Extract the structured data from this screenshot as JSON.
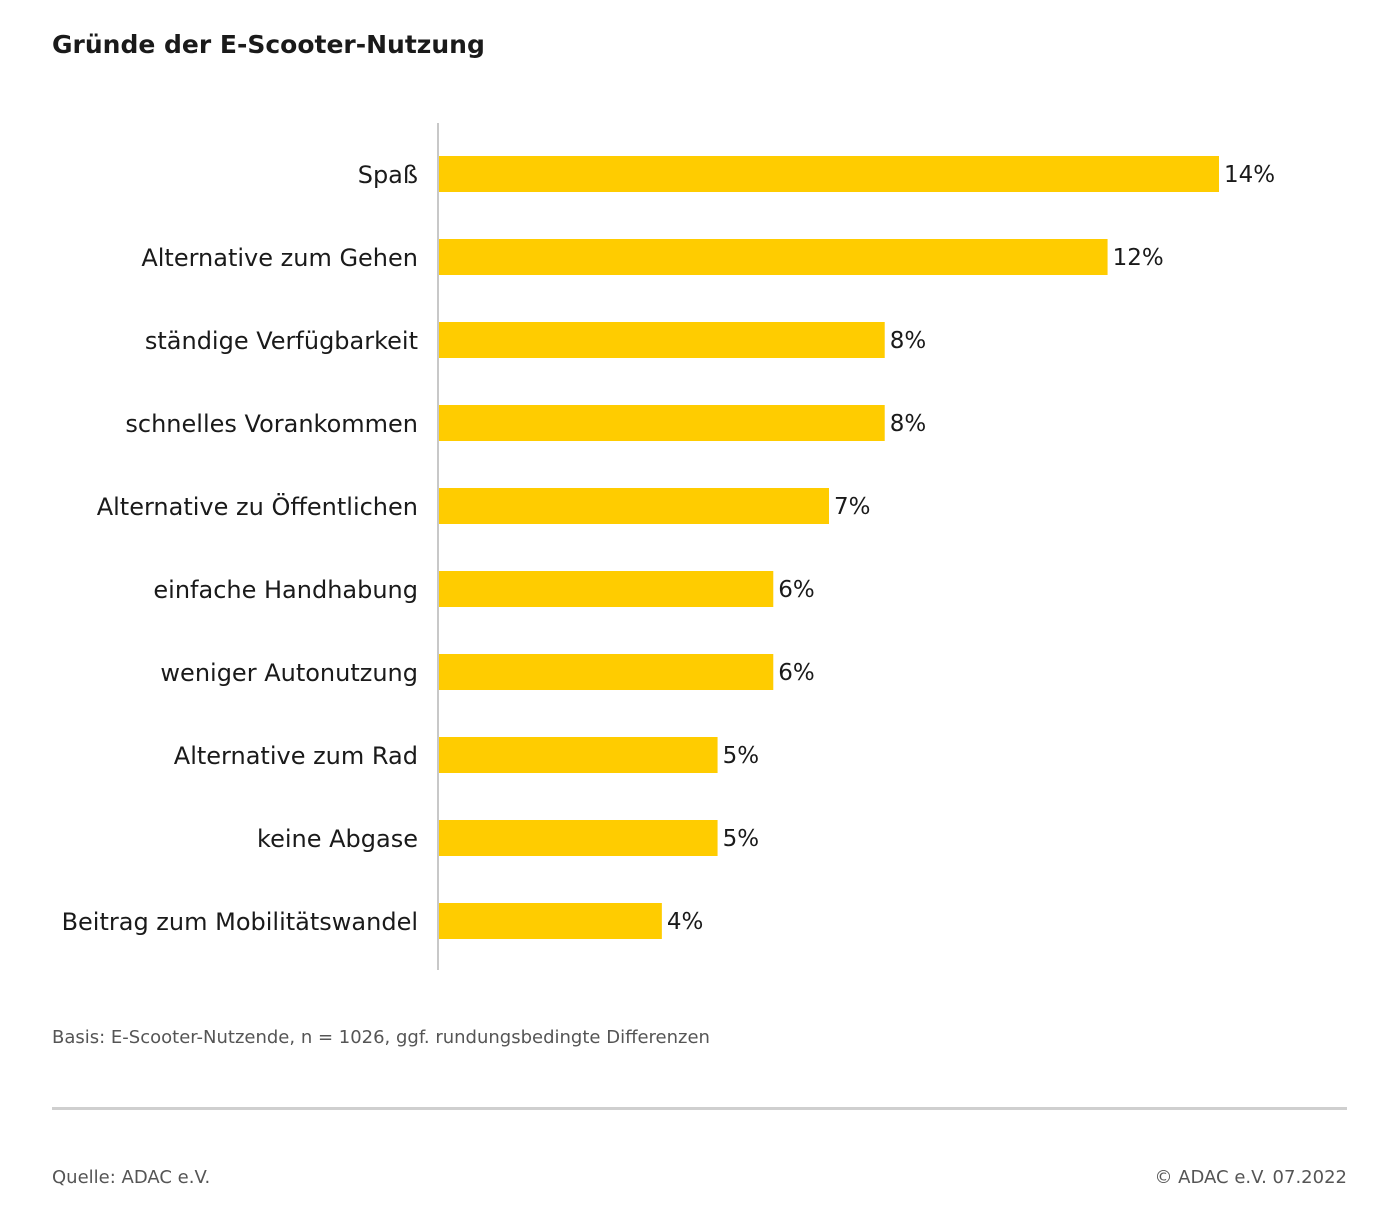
{
  "colors": {
    "bar": "#ffcc00",
    "axis": "#c8c8c8",
    "text": "#1a1a1a",
    "muted": "#555555"
  },
  "chart_data": {
    "type": "bar",
    "orientation": "horizontal",
    "title": "Gründe der E-Scooter-Nutzung",
    "categories": [
      "Spaß",
      "Alternative zum Gehen",
      "ständige Verfügbarkeit",
      "schnelles Vorankommen",
      "Alternative zu Öffentlichen",
      "einfache Handhabung",
      "weniger Autonutzung",
      "Alternative zum Rad",
      "keine Abgase",
      "Beitrag zum Mobilitätswandel"
    ],
    "values": [
      14,
      12,
      8,
      8,
      7,
      6,
      6,
      5,
      5,
      4
    ],
    "value_labels": [
      "14%",
      "12%",
      "8%",
      "8%",
      "7%",
      "6%",
      "6%",
      "5%",
      "5%",
      "4%"
    ],
    "unit": "%",
    "xlim": [
      0,
      14
    ],
    "grid": false,
    "legend": "none"
  },
  "footnote": "Basis: E-Scooter-Nutzende, n = 1026, ggf. rundungsbedingte Differenzen",
  "source": "Quelle: ADAC e.V.",
  "copyright": "© ADAC e.V. 07.2022"
}
